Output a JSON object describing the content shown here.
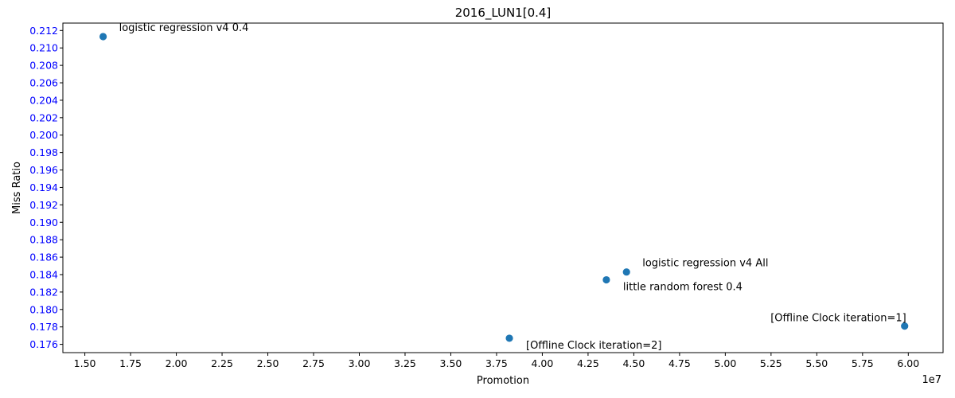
{
  "chart_data": {
    "type": "scatter",
    "title": "2016_LUN1[0.4]",
    "xlabel": "Promotion",
    "ylabel": "Miss Ratio",
    "x_offset_label": "1e7",
    "xlim": [
      1.38,
      6.19
    ],
    "ylim": [
      0.17505,
      0.21285
    ],
    "x_ticks": [
      "1.50",
      "1.75",
      "2.00",
      "2.25",
      "2.50",
      "2.75",
      "3.00",
      "3.25",
      "3.50",
      "3.75",
      "4.00",
      "4.25",
      "4.50",
      "4.75",
      "5.00",
      "5.25",
      "5.50",
      "5.75",
      "6.00"
    ],
    "y_ticks": [
      "0.176",
      "0.178",
      "0.180",
      "0.182",
      "0.184",
      "0.186",
      "0.188",
      "0.190",
      "0.192",
      "0.194",
      "0.196",
      "0.198",
      "0.200",
      "0.202",
      "0.204",
      "0.206",
      "0.208",
      "0.210",
      "0.212"
    ],
    "colors": {
      "points": "#1f77b4",
      "y_tick_labels": "#0000ff",
      "text": "#000000"
    },
    "points": [
      {
        "x": 1.6,
        "y": 0.2113,
        "label": "logistic regression v4 0.4",
        "label_pos": "above-right"
      },
      {
        "x": 4.46,
        "y": 0.1843,
        "label": "logistic regression v4 All",
        "label_pos": "above-right"
      },
      {
        "x": 4.35,
        "y": 0.1834,
        "label": "little random forest 0.4",
        "label_pos": "below-right"
      },
      {
        "x": 5.98,
        "y": 0.1781,
        "label": "[Offline Clock iteration=1]",
        "label_pos": "above-left"
      },
      {
        "x": 3.82,
        "y": 0.1767,
        "label": "[Offline Clock iteration=2]",
        "label_pos": "below-right"
      }
    ]
  }
}
